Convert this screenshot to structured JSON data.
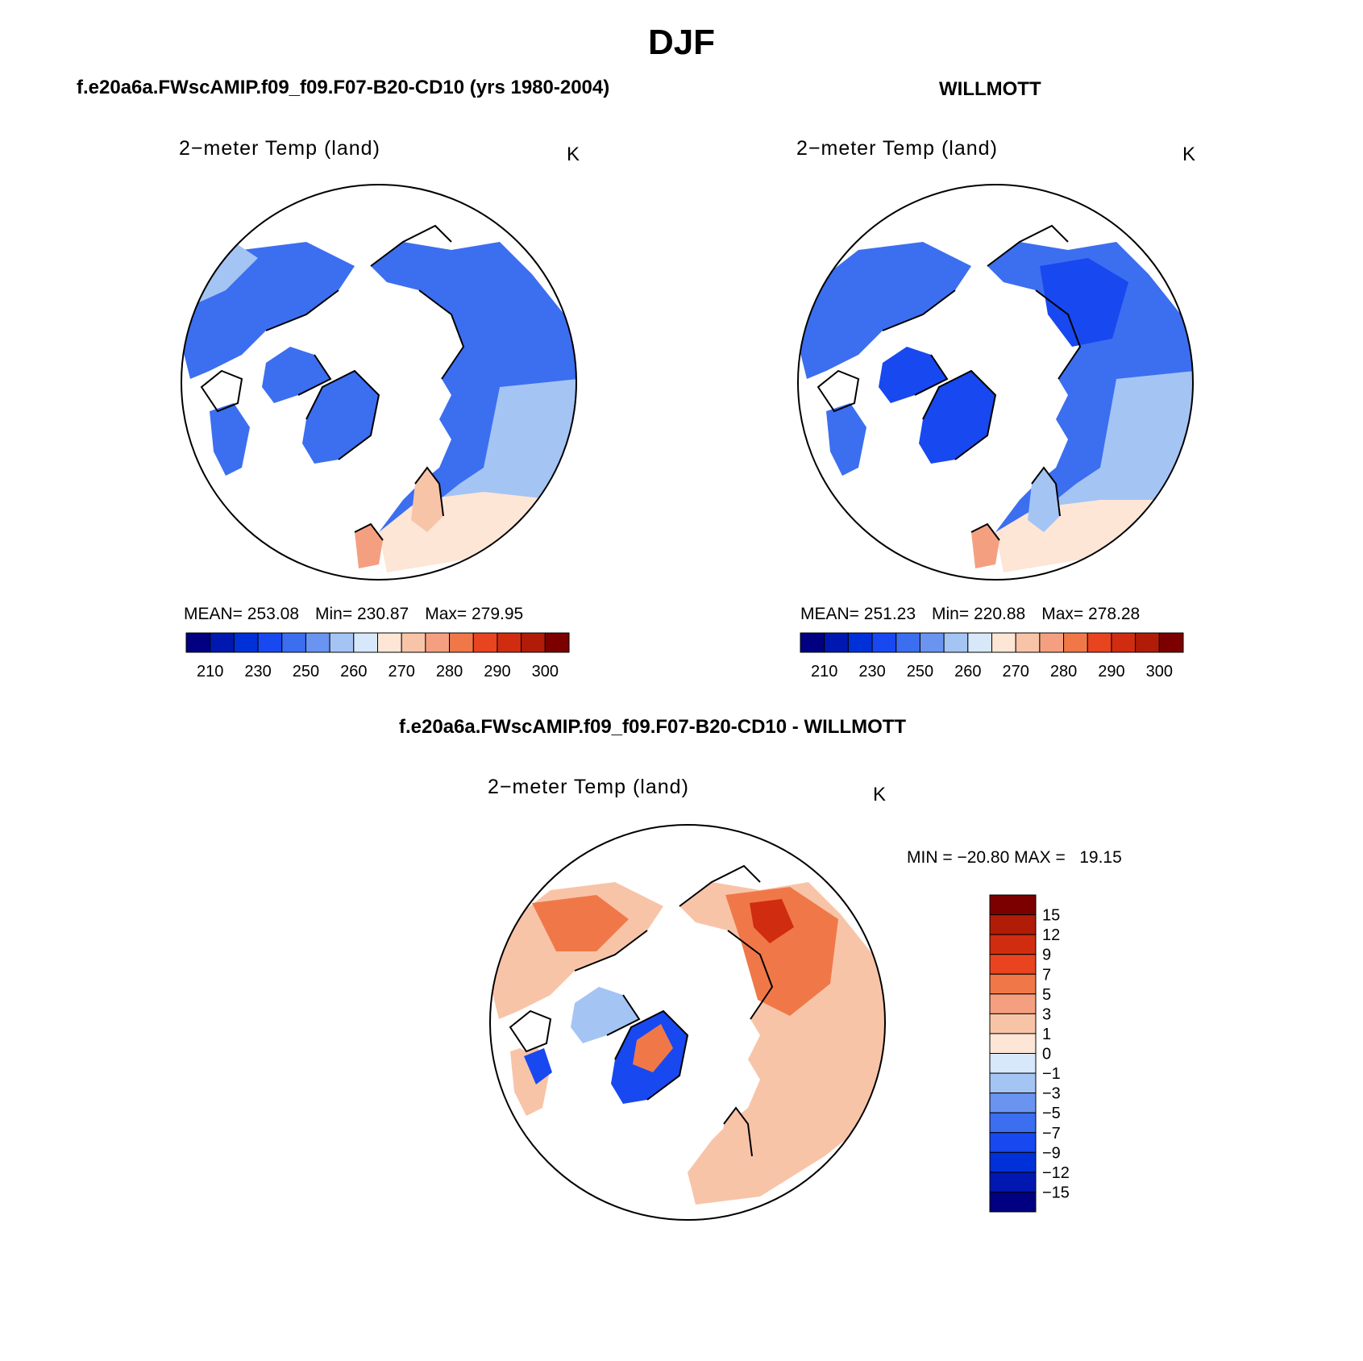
{
  "figure": {
    "title": "DJF",
    "panels": [
      {
        "id": "model",
        "header": "f.e20a6a.FWscAMIP.f09_f09.F07-B20-CD10 (yrs 1980-2004)",
        "variable": "2−meter Temp (land)",
        "units": "K",
        "stats": {
          "mean_label": "MEAN=",
          "mean": "253.08",
          "min_label": "Min=",
          "min": "230.87",
          "max_label": "Max=",
          "max": "279.95"
        }
      },
      {
        "id": "obs",
        "header": "WILLMOTT",
        "variable": "2−meter Temp (land)",
        "units": "K",
        "stats": {
          "mean_label": "MEAN=",
          "mean": "251.23",
          "min_label": "Min=",
          "min": "220.88",
          "max_label": "Max=",
          "max": "278.28"
        }
      },
      {
        "id": "diff",
        "header": "f.e20a6a.FWscAMIP.f09_f09.F07-B20-CD10 - WILLMOTT",
        "variable": "2−meter Temp (land)",
        "units": "K",
        "stats": {
          "min_label": "MIN =",
          "min": "−20.80",
          "max_label": "MAX =",
          "max": "19.15"
        }
      }
    ]
  },
  "abs_colorbar": {
    "colors": [
      "#000080",
      "#0018b0",
      "#0030d8",
      "#1848f0",
      "#3c6ef0",
      "#6a94f0",
      "#a4c4f4",
      "#d6e8fa",
      "#fde6d6",
      "#f8c4a8",
      "#f4a080",
      "#f07848",
      "#e84420",
      "#d02c10",
      "#b01c08",
      "#7c0000"
    ],
    "labels": [
      "210",
      "230",
      "250",
      "260",
      "270",
      "280",
      "290",
      "300"
    ]
  },
  "diff_colorbar": {
    "colors": [
      "#7c0000",
      "#b01c08",
      "#d02c10",
      "#e84420",
      "#f07848",
      "#f4a080",
      "#f8c4a8",
      "#fde6d6",
      "#d6e8fa",
      "#a4c4f4",
      "#6a94f0",
      "#3c6ef0",
      "#1848f0",
      "#0030d8",
      "#0018b0",
      "#000080"
    ],
    "labels": [
      "15",
      "12",
      "9",
      "7",
      "5",
      "3",
      "1",
      "0",
      "−1",
      "−3",
      "−5",
      "−7",
      "−9",
      "−12",
      "−15"
    ]
  },
  "legend": {
    "ocean": "#ffffff",
    "land_model_cold": "#3c6ef0",
    "land_model_cool": "#6a94f0",
    "land_light": "#a4c4f4",
    "land_pale": "#d6e8fa",
    "land_warm": "#fde6d6",
    "land_warmer": "#f8c4a8",
    "diff_warm": "#f8c4a8",
    "diff_hot": "#f07848",
    "diff_cold": "#1848f0"
  }
}
